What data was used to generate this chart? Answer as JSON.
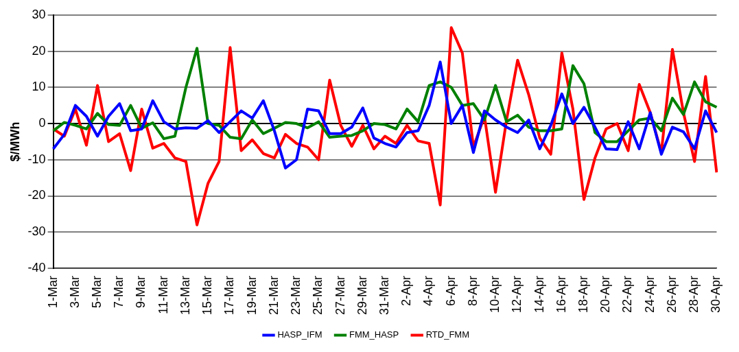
{
  "chart_data": {
    "type": "line",
    "ylabel": "$/MWh",
    "categories": [
      "1-Mar",
      null,
      "3-Mar",
      null,
      "5-Mar",
      null,
      "7-Mar",
      null,
      "9-Mar",
      null,
      "11-Mar",
      null,
      "13-Mar",
      null,
      "15-Mar",
      null,
      "17-Mar",
      null,
      "19-Mar",
      null,
      "21-Mar",
      null,
      "23-Mar",
      null,
      "25-Mar",
      null,
      "27-Mar",
      null,
      "29-Mar",
      null,
      "31-Mar",
      null,
      "2-Apr",
      null,
      "4-Apr",
      null,
      "6-Apr",
      null,
      "8-Apr",
      null,
      "10-Apr",
      null,
      "12-Apr",
      null,
      "14-Apr",
      null,
      "16-Apr",
      null,
      "18-Apr",
      null,
      "20-Apr",
      null,
      "22-Apr",
      null,
      "24-Apr",
      null,
      "26-Apr",
      null,
      "28-Apr",
      null,
      "30-Apr"
    ],
    "series": [
      {
        "name": "HASP_IFM",
        "color": "#0000ff",
        "values": [
          -7,
          -3,
          5,
          2,
          -3.5,
          2,
          5.5,
          -2,
          -1.5,
          6.3,
          0.5,
          -1.5,
          -1.2,
          -1.3,
          0.8,
          -2.5,
          0.5,
          3.5,
          1.5,
          6.3,
          -2,
          -12.3,
          -10,
          4,
          3.5,
          -2.8,
          -2.8,
          -1,
          4.3,
          -4,
          -5.5,
          -6.5,
          -2.5,
          -2,
          5,
          17,
          0,
          5,
          -8,
          3.5,
          1,
          -1,
          -2.5,
          1,
          -7,
          -0.5,
          8.2,
          0,
          4.5,
          -1,
          -7,
          -7.2,
          0.5,
          -7,
          3,
          -8.5,
          -1,
          -2.3,
          -7,
          3.5,
          -2.5
        ]
      },
      {
        "name": "FMM_HASP",
        "color": "#008000",
        "values": [
          -2,
          0.3,
          -0.5,
          -1.5,
          2.8,
          -0.3,
          -0.5,
          5,
          -1.3,
          0.2,
          -4.2,
          -3.5,
          10,
          20.8,
          0,
          -0.5,
          -3.8,
          -4.2,
          1,
          -2.8,
          -1.3,
          0.3,
          0,
          -1.2,
          0.5,
          -3.8,
          -3.5,
          -3.3,
          -2,
          0,
          -0.3,
          -1.5,
          4,
          0.5,
          10.5,
          11.5,
          10,
          5,
          5.5,
          1,
          10.5,
          0.5,
          2.3,
          -1,
          -2,
          -2,
          -1.5,
          16,
          11,
          -2.5,
          -5,
          -5,
          -2,
          1,
          1.5,
          -2,
          7,
          2.5,
          11.5,
          6,
          4.5
        ]
      },
      {
        "name": "RTD_FMM",
        "color": "#ff0000",
        "values": [
          -1.5,
          -3.5,
          4,
          -6,
          10.5,
          -5,
          -2.8,
          -13,
          4,
          -6.8,
          -5.5,
          -9.5,
          -10.5,
          -28,
          -16.5,
          -10.5,
          21,
          -7.5,
          -4.5,
          -8.3,
          -9.5,
          -3,
          -5.5,
          -6.5,
          -10,
          12,
          -0.5,
          -6.3,
          -0.5,
          -7,
          -3.5,
          -5.5,
          -0.5,
          -4.8,
          -5.5,
          -22.5,
          26.5,
          19.5,
          -6.5,
          2,
          -19,
          1,
          17.5,
          8,
          -4,
          -8.5,
          19.5,
          4,
          -21,
          -9.5,
          -1.5,
          0,
          -7.5,
          10.8,
          3,
          -8,
          20.5,
          3,
          -10.5,
          13,
          -13.5
        ]
      }
    ],
    "ylim": [
      -40,
      30
    ],
    "yticks": [
      -40,
      -30,
      -20,
      -10,
      0,
      10,
      20,
      30
    ],
    "grid": "y",
    "legend": "bottom",
    "marker": "none",
    "line_style": "solid"
  }
}
